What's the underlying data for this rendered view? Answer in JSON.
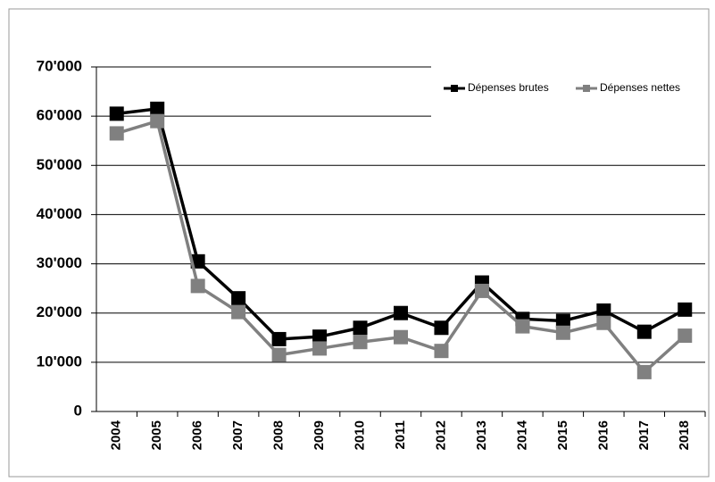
{
  "chart_data": {
    "type": "line",
    "categories": [
      "2004",
      "2005",
      "2006",
      "2007",
      "2008",
      "2009",
      "2010",
      "2011",
      "2012",
      "2013",
      "2014",
      "2015",
      "2016",
      "2017",
      "2018"
    ],
    "series": [
      {
        "name": "Dépenses brutes",
        "color": "#000000",
        "values": [
          60500,
          61500,
          30500,
          23000,
          14700,
          15200,
          17000,
          20000,
          17000,
          26200,
          18800,
          18400,
          20500,
          16200,
          20700
        ]
      },
      {
        "name": "Dépenses nettes",
        "color": "#808080",
        "values": [
          56500,
          59000,
          25500,
          20200,
          11500,
          12800,
          14100,
          15100,
          12300,
          24500,
          17300,
          16000,
          18000,
          8000,
          15400
        ]
      }
    ],
    "ylim": [
      0,
      70000
    ],
    "yticks": [
      0,
      {
        "value": 10000,
        "label": "10'000"
      },
      {
        "value": 20000,
        "label": "20'000"
      },
      {
        "value": 30000,
        "label": "30'000"
      },
      {
        "value": 40000,
        "label": "40'000"
      },
      {
        "value": 50000,
        "label": "50'000"
      },
      {
        "value": 60000,
        "label": "60'000"
      },
      {
        "value": 70000,
        "label": "70'000"
      }
    ],
    "grid": true,
    "legend": "top-right"
  }
}
